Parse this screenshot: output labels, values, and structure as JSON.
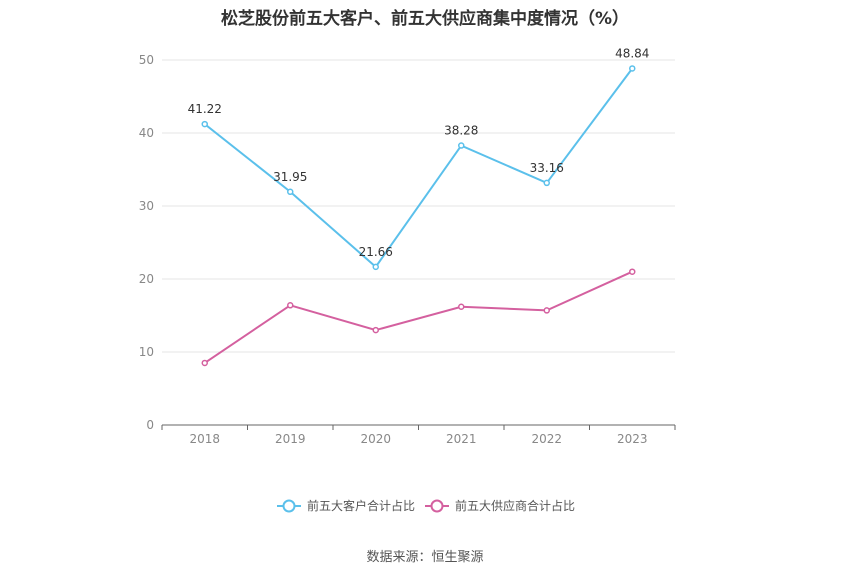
{
  "chart_data": {
    "type": "line",
    "title": "松芝股份前五大客户、前五大供应商集中度情况（%）",
    "categories": [
      "2018",
      "2019",
      "2020",
      "2021",
      "2022",
      "2023"
    ],
    "ylim": [
      0,
      50
    ],
    "yticks": [
      0,
      10,
      20,
      30,
      40,
      50
    ],
    "grid": true,
    "legend_position": "bottom",
    "series": [
      {
        "name": "前五大客户合计占比",
        "values": [
          41.22,
          31.95,
          21.66,
          38.28,
          33.16,
          48.84
        ],
        "labels": [
          "41.22",
          "31.95",
          "21.66",
          "38.28",
          "33.16",
          "48.84"
        ],
        "color": "#5bc0eb"
      },
      {
        "name": "前五大供应商合计占比",
        "values": [
          8.5,
          16.4,
          13.0,
          16.2,
          15.7,
          21.0
        ],
        "labels": [],
        "color": "#d4609f"
      }
    ]
  },
  "source": "数据来源：恒生聚源"
}
